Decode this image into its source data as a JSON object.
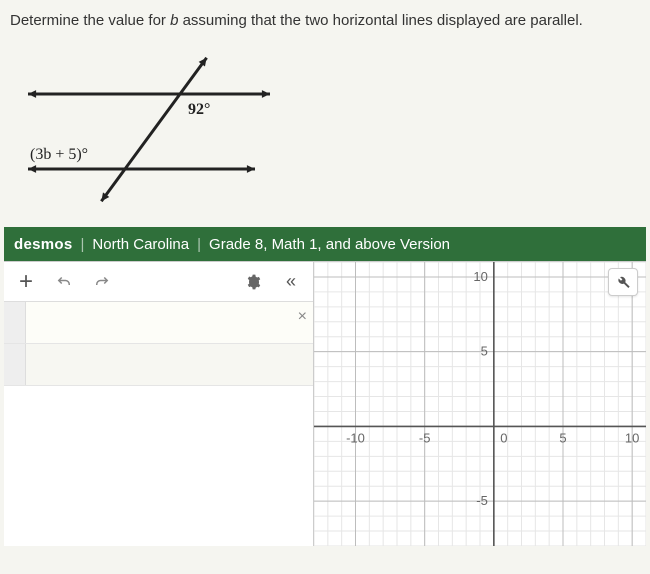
{
  "question": {
    "prefix": "Determine the value for ",
    "var": "b",
    "suffix": " assuming that the two horizontal lines displayed are parallel."
  },
  "diagram": {
    "angle_top": "92°",
    "angle_bottom_expr": "(3b + 5)°",
    "line_color": "#222222",
    "stroke_width": 3,
    "arrow_size": 9
  },
  "desmos": {
    "bar_bg": "#2f6f3a",
    "brand": "desmos",
    "region": "North Carolina",
    "version": "Grade 8, Math 1, and above Version"
  },
  "toolbar": {
    "collapse_glyph": "«"
  },
  "expr_rows": [
    "",
    ""
  ],
  "graph": {
    "xmin": -13,
    "xmax": 11,
    "ymin": -8,
    "ymax": 11,
    "xticks_labeled": [
      -10,
      -5,
      0,
      5,
      10
    ],
    "yticks_labeled": [
      -5,
      5,
      10
    ],
    "minor_step": 1,
    "major_step": 5,
    "bg": "#ffffff",
    "minor_grid": "#e6e6e6",
    "major_grid": "#bdbdbd",
    "axis_color": "#555555",
    "label_color": "#666666",
    "label_fontsize": 13
  }
}
